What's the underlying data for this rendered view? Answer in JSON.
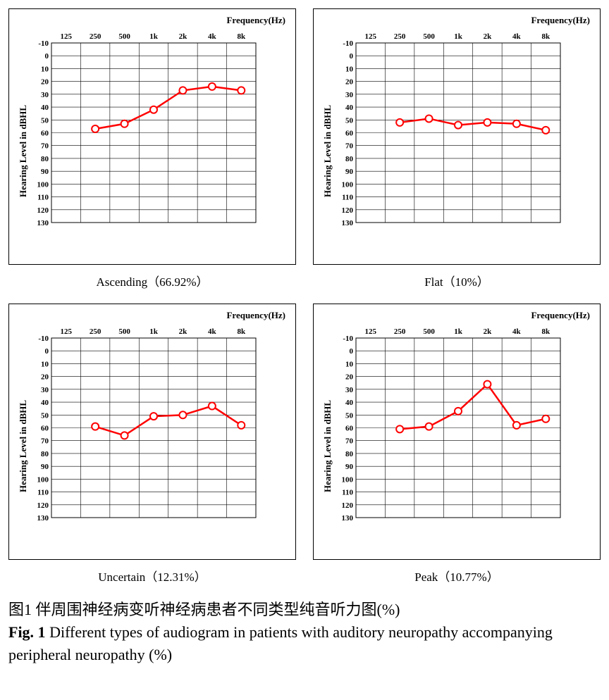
{
  "common": {
    "freq_title": "Frequency(Hz)",
    "y_title": "Hearing Level in dBHL",
    "x_ticks": [
      "125",
      "250",
      "500",
      "1k",
      "2k",
      "4k",
      "8k"
    ],
    "y_min": -10,
    "y_max": 130,
    "y_step": 10,
    "x_label_fontsize": 11,
    "y_label_fontsize": 11,
    "tick_fontweight": "bold",
    "line_color": "#ff0000",
    "marker_fill": "#ffffff",
    "marker_stroke": "#ff0000",
    "marker_radius": 5,
    "line_width": 2.5,
    "grid_color": "#000000",
    "grid_width": 0.6,
    "plot_bg": "#ffffff",
    "first_data_index": 1
  },
  "panels": [
    {
      "caption": "Ascending（66.92%）",
      "values": [
        57,
        53,
        42,
        27,
        24,
        27
      ]
    },
    {
      "caption": "Flat（10%）",
      "values": [
        52,
        49,
        54,
        52,
        53,
        58
      ]
    },
    {
      "caption": "Uncertain（12.31%）",
      "values": [
        59,
        66,
        51,
        50,
        43,
        58
      ]
    },
    {
      "caption": "Peak（10.77%）",
      "values": [
        61,
        59,
        47,
        26,
        58,
        53
      ]
    }
  ],
  "figure_caption": {
    "cn_label": "图1",
    "cn_text": "伴周围神经病变听神经病患者不同类型纯音听力图(%)",
    "en_label": "Fig. 1",
    "en_text": "Different types of audiogram in patients with auditory neuropathy accompanying peripheral neuropathy (%)"
  }
}
